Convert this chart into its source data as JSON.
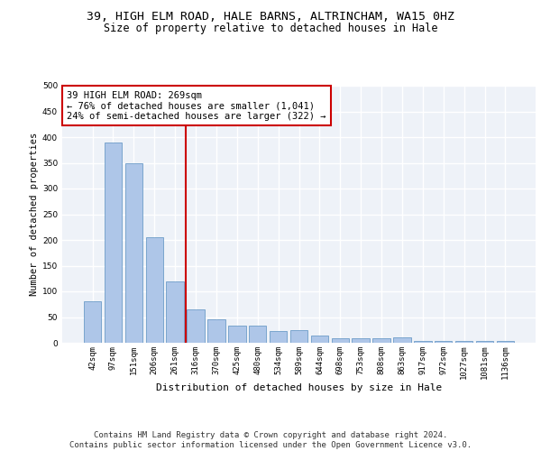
{
  "title1": "39, HIGH ELM ROAD, HALE BARNS, ALTRINCHAM, WA15 0HZ",
  "title2": "Size of property relative to detached houses in Hale",
  "xlabel": "Distribution of detached houses by size in Hale",
  "ylabel": "Number of detached properties",
  "categories": [
    "42sqm",
    "97sqm",
    "151sqm",
    "206sqm",
    "261sqm",
    "316sqm",
    "370sqm",
    "425sqm",
    "480sqm",
    "534sqm",
    "589sqm",
    "644sqm",
    "698sqm",
    "753sqm",
    "808sqm",
    "863sqm",
    "917sqm",
    "972sqm",
    "1027sqm",
    "1081sqm",
    "1136sqm"
  ],
  "values": [
    80,
    390,
    350,
    205,
    120,
    65,
    45,
    33,
    33,
    22,
    24,
    14,
    9,
    9,
    9,
    10,
    4,
    4,
    4,
    4,
    4
  ],
  "bar_color": "#aec6e8",
  "bar_edge_color": "#5a8fc0",
  "vline_x_index": 4,
  "vline_color": "#cc0000",
  "annotation_text": "39 HIGH ELM ROAD: 269sqm\n← 76% of detached houses are smaller (1,041)\n24% of semi-detached houses are larger (322) →",
  "annotation_box_color": "white",
  "annotation_box_edge": "#cc0000",
  "footer1": "Contains HM Land Registry data © Crown copyright and database right 2024.",
  "footer2": "Contains public sector information licensed under the Open Government Licence v3.0.",
  "ylim": [
    0,
    500
  ],
  "background_color": "#eef2f8",
  "grid_color": "white",
  "title1_fontsize": 9.5,
  "title2_fontsize": 8.5,
  "xlabel_fontsize": 8,
  "ylabel_fontsize": 7.5,
  "tick_fontsize": 6.5,
  "annotation_fontsize": 7.5,
  "footer_fontsize": 6.5
}
